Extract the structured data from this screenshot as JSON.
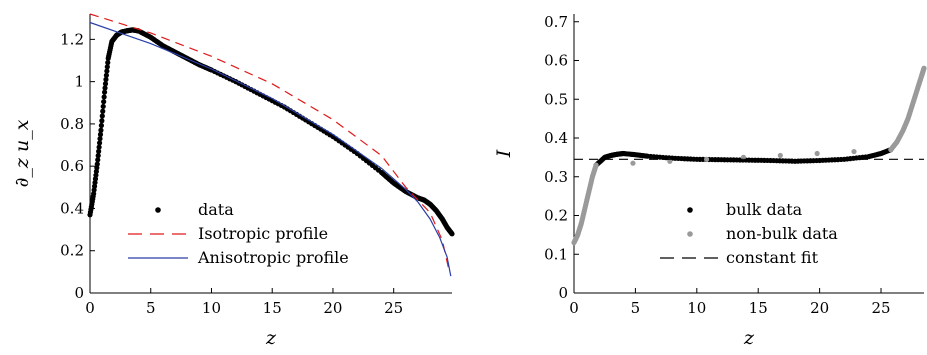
{
  "chart_data": [
    {
      "type": "scatter",
      "xlabel": "z",
      "ylabel": "∂_z u_x",
      "xlim": [
        0,
        29.8
      ],
      "ylim": [
        0,
        1.32
      ],
      "xticks": [
        "0",
        "5",
        "10",
        "15",
        "20",
        "25"
      ],
      "yticks": [
        "0",
        "0.2",
        "0.4",
        "0.6",
        "0.8",
        "1",
        "1.2"
      ],
      "legend_position": "bottom-center",
      "series": [
        {
          "name": "data",
          "style": "dots",
          "color": "#000000",
          "x": [
            0,
            0.3,
            0.6,
            0.9,
            1.2,
            1.5,
            1.8,
            2.2,
            2.6,
            3.0,
            3.5,
            4.0,
            5,
            6,
            7,
            8,
            9,
            10,
            12,
            14,
            16,
            18,
            20,
            22,
            24,
            25,
            26,
            27,
            27.5,
            28,
            28.5,
            29,
            29.4,
            29.8
          ],
          "y": [
            0.37,
            0.47,
            0.61,
            0.77,
            0.95,
            1.11,
            1.19,
            1.22,
            1.235,
            1.24,
            1.245,
            1.24,
            1.21,
            1.17,
            1.14,
            1.11,
            1.08,
            1.055,
            1.0,
            0.94,
            0.88,
            0.81,
            0.74,
            0.66,
            0.57,
            0.52,
            0.48,
            0.45,
            0.44,
            0.42,
            0.39,
            0.35,
            0.31,
            0.28
          ]
        },
        {
          "name": "Isotropic profile",
          "style": "dashed",
          "color": "#e01b1b",
          "x": [
            0,
            5,
            10,
            15,
            20,
            24,
            26,
            28,
            29,
            29.5
          ],
          "y": [
            1.32,
            1.23,
            1.12,
            0.99,
            0.82,
            0.65,
            0.5,
            0.38,
            0.25,
            0.12
          ]
        },
        {
          "name": "Anisotropic profile",
          "style": "solid",
          "color": "#2a3fa8",
          "x": [
            0,
            5,
            10,
            15,
            20,
            24,
            26,
            27,
            28,
            28.8,
            29.4,
            29.7
          ],
          "y": [
            1.28,
            1.18,
            1.06,
            0.92,
            0.75,
            0.59,
            0.49,
            0.43,
            0.35,
            0.26,
            0.17,
            0.08
          ]
        }
      ]
    },
    {
      "type": "scatter",
      "xlabel": "z",
      "ylabel": "I",
      "xlim": [
        0,
        28.5
      ],
      "ylim": [
        0,
        0.72
      ],
      "xticks": [
        "0",
        "5",
        "10",
        "15",
        "20",
        "25"
      ],
      "yticks": [
        "0",
        "0.1",
        "0.2",
        "0.3",
        "0.4",
        "0.5",
        "0.6",
        "0.7"
      ],
      "legend_position": "bottom-center",
      "series": [
        {
          "name": "bulk data",
          "style": "dots",
          "color": "#000000",
          "x": [
            1.8,
            2.5,
            3.0,
            3.5,
            4.0,
            5,
            6,
            8,
            10,
            12,
            14,
            16,
            18,
            20,
            22,
            24,
            25,
            25.8
          ],
          "y": [
            0.33,
            0.35,
            0.355,
            0.358,
            0.36,
            0.357,
            0.353,
            0.348,
            0.345,
            0.344,
            0.343,
            0.342,
            0.34,
            0.342,
            0.345,
            0.352,
            0.36,
            0.37
          ]
        },
        {
          "name": "non-bulk data",
          "style": "dots",
          "color": "#9a9a9a",
          "x": [
            0,
            0.3,
            0.6,
            0.9,
            1.2,
            1.5,
            1.8,
            25.8,
            26.3,
            26.8,
            27.2,
            27.6,
            28.0,
            28.3,
            28.5
          ],
          "y": [
            0.13,
            0.15,
            0.18,
            0.22,
            0.26,
            0.3,
            0.33,
            0.37,
            0.39,
            0.42,
            0.45,
            0.49,
            0.53,
            0.56,
            0.58
          ]
        },
        {
          "name": "constant fit",
          "style": "dashed",
          "color": "#000000",
          "x": [
            0,
            28.5
          ],
          "y": [
            0.345,
            0.345
          ]
        }
      ]
    }
  ]
}
